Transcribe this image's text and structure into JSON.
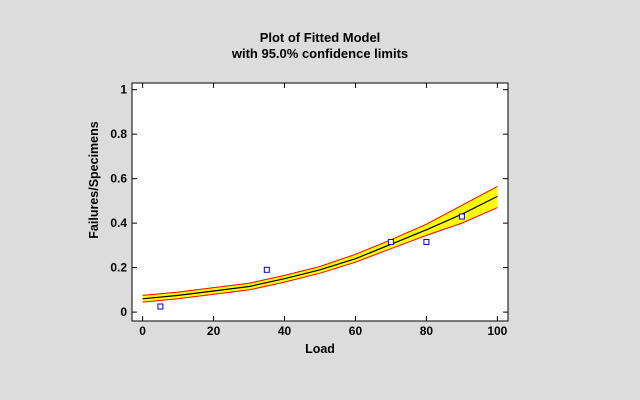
{
  "chart_data": {
    "type": "line",
    "title": "Plot of Fitted Model",
    "subtitle": "with 95.0% confidence limits",
    "xlabel": "Load",
    "ylabel": "Failures/Specimens",
    "xlim": [
      -3,
      103
    ],
    "ylim": [
      -0.04,
      1.03
    ],
    "xticks": [
      0,
      20,
      40,
      60,
      80,
      100
    ],
    "yticks": [
      0,
      0.2,
      0.4,
      0.6,
      0.8,
      1
    ],
    "x": [
      0,
      10,
      20,
      30,
      40,
      50,
      60,
      70,
      80,
      90,
      100
    ],
    "fitted": [
      0.06,
      0.075,
      0.095,
      0.115,
      0.15,
      0.19,
      0.24,
      0.305,
      0.37,
      0.44,
      0.52
    ],
    "lower_limit": [
      0.045,
      0.06,
      0.08,
      0.1,
      0.135,
      0.175,
      0.225,
      0.285,
      0.345,
      0.4,
      0.47
    ],
    "upper_limit": [
      0.075,
      0.09,
      0.11,
      0.13,
      0.165,
      0.205,
      0.26,
      0.325,
      0.395,
      0.48,
      0.565
    ],
    "observed": [
      {
        "x": 5,
        "y": 0.025
      },
      {
        "x": 35,
        "y": 0.19
      },
      {
        "x": 70,
        "y": 0.315
      },
      {
        "x": 80,
        "y": 0.315
      },
      {
        "x": 90,
        "y": 0.43
      }
    ],
    "grid": false,
    "colors": {
      "band_fill": "#ffff00",
      "limit_lines": "#ff0000",
      "fitted_line": "#000000",
      "markers": "#0000cc",
      "plot_background": "#ffffff",
      "page_background": "#dcdcdc"
    }
  }
}
